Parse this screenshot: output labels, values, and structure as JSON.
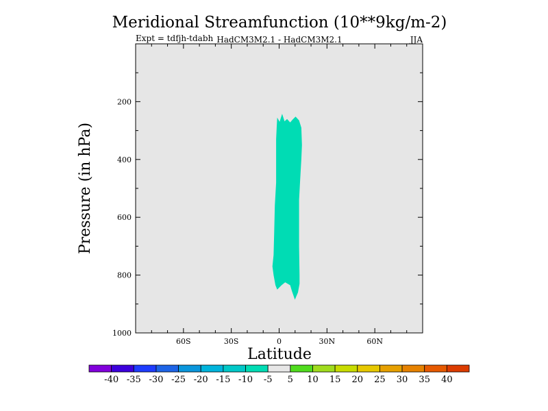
{
  "chart_data": {
    "type": "contour",
    "title": "Meridional Streamfunction (10**9kg/m-2)",
    "subtitle_left": "Expt = tdfjh-tdabh",
    "subtitle_center": "HadCM3M2.1 - HadCM3M2.1",
    "subtitle_right": "JJA",
    "xlabel": "Latitude",
    "ylabel": "Pressure (in hPa)",
    "xlim": [
      -90,
      90
    ],
    "ylim": [
      1000,
      0
    ],
    "x_ticks": [
      {
        "value": -60,
        "label": "60S"
      },
      {
        "value": -30,
        "label": "30S"
      },
      {
        "value": 0,
        "label": "0"
      },
      {
        "value": 30,
        "label": "30N"
      },
      {
        "value": 60,
        "label": "60N"
      }
    ],
    "y_ticks": [
      {
        "value": 200,
        "label": "200"
      },
      {
        "value": 400,
        "label": "400"
      },
      {
        "value": 600,
        "label": "600"
      },
      {
        "value": 800,
        "label": "800"
      },
      {
        "value": 1000,
        "label": "1000"
      }
    ],
    "background_band": {
      "from": -5,
      "to": 5,
      "color": "#e6e6e6"
    },
    "filled_regions": [
      {
        "name": "band -10 to -5",
        "color": "#00dcb4",
        "points": [
          [
            -1.2,
            255
          ],
          [
            0.3,
            270
          ],
          [
            1.9,
            242
          ],
          [
            3.4,
            268
          ],
          [
            5.0,
            260
          ],
          [
            6.9,
            272
          ],
          [
            8.4,
            262
          ],
          [
            10.3,
            252
          ],
          [
            12.5,
            265
          ],
          [
            13.9,
            290
          ],
          [
            14.3,
            350
          ],
          [
            13.9,
            400
          ],
          [
            13.2,
            470
          ],
          [
            12.5,
            540
          ],
          [
            12.5,
            600
          ],
          [
            12.5,
            700
          ],
          [
            12.8,
            800
          ],
          [
            12.8,
            830
          ],
          [
            11.8,
            860
          ],
          [
            9.9,
            885
          ],
          [
            8.0,
            855
          ],
          [
            6.9,
            835
          ],
          [
            3.8,
            825
          ],
          [
            1.5,
            835
          ],
          [
            -1.2,
            850
          ],
          [
            -2.3,
            835
          ],
          [
            -3.5,
            800
          ],
          [
            -4.2,
            770
          ],
          [
            -3.5,
            730
          ],
          [
            -3.1,
            650
          ],
          [
            -2.7,
            560
          ],
          [
            -1.9,
            480
          ],
          [
            -1.9,
            400
          ],
          [
            -1.9,
            330
          ],
          [
            -1.5,
            285
          ]
        ]
      }
    ],
    "colorbar": {
      "colors": [
        "#8200dc",
        "#3c00dc",
        "#1e3cff",
        "#1e64e6",
        "#0a96dc",
        "#00b4dc",
        "#00c8c8",
        "#00dcb4",
        "#e6e6e6",
        "#50dc1e",
        "#a0dc1e",
        "#c8dc00",
        "#e6c800",
        "#e6a000",
        "#e68200",
        "#e65a00",
        "#dc3c00"
      ],
      "labels": [
        "-40",
        "-35",
        "-30",
        "-25",
        "-20",
        "-15",
        "-10",
        "-5",
        "5",
        "10",
        "15",
        "20",
        "25",
        "30",
        "35",
        "40"
      ]
    }
  }
}
